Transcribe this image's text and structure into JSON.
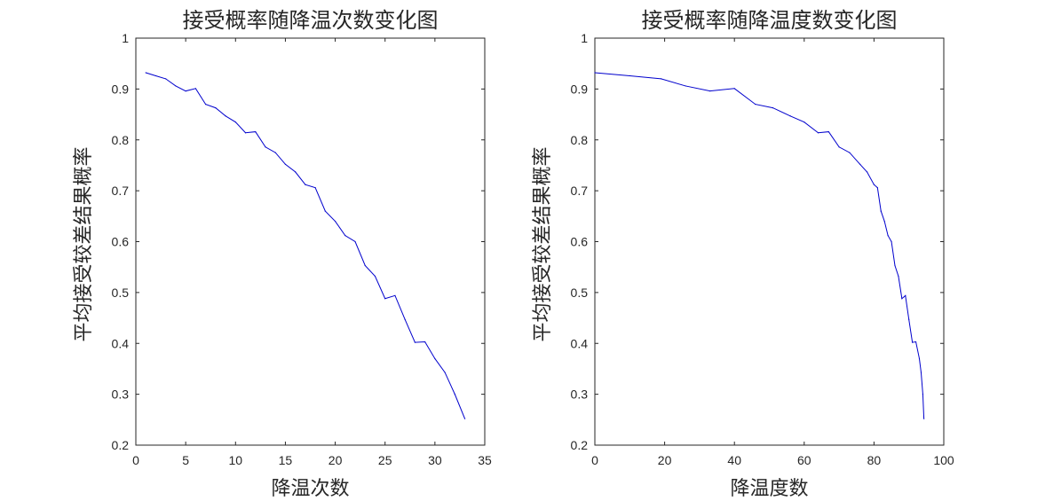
{
  "colors": {
    "line": "#0000cd",
    "axis": "#262626",
    "background": "#ffffff"
  },
  "chart_data": [
    {
      "type": "line",
      "title": "接受概率随降温次数变化图",
      "xlabel": "降温次数",
      "ylabel": "平均接受较差结果概率",
      "xlim": [
        0,
        35
      ],
      "ylim": [
        0.2,
        1
      ],
      "xticks": [
        "0",
        "5",
        "10",
        "15",
        "20",
        "25",
        "30",
        "35"
      ],
      "yticks": [
        "0.2",
        "0.3",
        "0.4",
        "0.5",
        "0.6",
        "0.7",
        "0.8",
        "0.9",
        "1"
      ],
      "grid": false,
      "series": [
        {
          "x": [
            1,
            2,
            3,
            4,
            5,
            6,
            7,
            8,
            9,
            10,
            11,
            12,
            13,
            14,
            15,
            16,
            17,
            18,
            19,
            20,
            21,
            22,
            23,
            24,
            25,
            26,
            27,
            28,
            29,
            30,
            31,
            32,
            33
          ],
          "values": [
            0.932,
            0.926,
            0.92,
            0.906,
            0.896,
            0.901,
            0.87,
            0.863,
            0.847,
            0.835,
            0.814,
            0.816,
            0.786,
            0.775,
            0.752,
            0.737,
            0.712,
            0.706,
            0.66,
            0.64,
            0.612,
            0.6,
            0.553,
            0.532,
            0.488,
            0.494,
            0.447,
            0.402,
            0.403,
            0.37,
            0.343,
            0.3,
            0.252
          ]
        }
      ]
    },
    {
      "type": "line",
      "title": "接受概率随降温度数变化图",
      "xlabel": "降温度数",
      "ylabel": "平均接受较差结果概率",
      "xlim": [
        0,
        100
      ],
      "ylim": [
        0.2,
        1
      ],
      "xticks": [
        "0",
        "20",
        "40",
        "60",
        "80",
        "100"
      ],
      "yticks": [
        "0.2",
        "0.3",
        "0.4",
        "0.5",
        "0.6",
        "0.7",
        "0.8",
        "0.9",
        "1"
      ],
      "grid": false,
      "series": [
        {
          "x": [
            0,
            10,
            19,
            26,
            33,
            40,
            46,
            51,
            56,
            60,
            64,
            67,
            70,
            73,
            76,
            78,
            80,
            81,
            82,
            83,
            84,
            85,
            86,
            87,
            88,
            89,
            90,
            91,
            92,
            93,
            93.5,
            94,
            94.3
          ],
          "values": [
            0.932,
            0.926,
            0.92,
            0.906,
            0.896,
            0.901,
            0.87,
            0.863,
            0.847,
            0.835,
            0.814,
            0.816,
            0.786,
            0.775,
            0.752,
            0.737,
            0.712,
            0.706,
            0.66,
            0.64,
            0.612,
            0.6,
            0.553,
            0.532,
            0.488,
            0.494,
            0.447,
            0.402,
            0.403,
            0.37,
            0.343,
            0.3,
            0.252
          ]
        }
      ]
    }
  ]
}
